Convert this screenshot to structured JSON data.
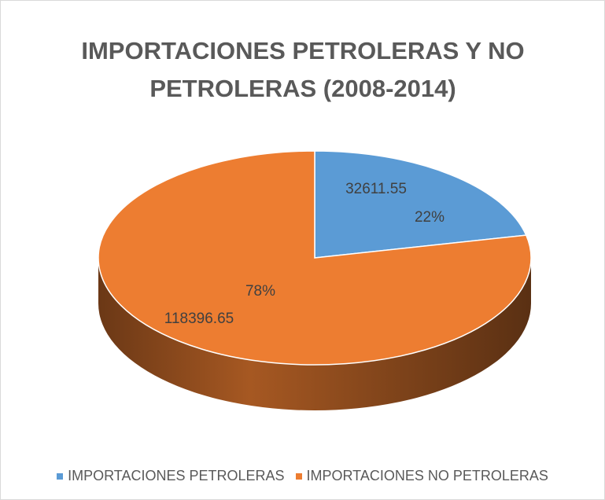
{
  "chart_data": {
    "type": "pie",
    "title": "IMPORTACIONES PETROLERAS Y NO PETROLERAS (2008-2014)",
    "categories": [
      "IMPORTACIONES PETROLERAS",
      "IMPORTACIONES NO PETROLERAS"
    ],
    "values": [
      32611.55,
      118396.65
    ],
    "percent_labels": [
      "22%",
      "78%"
    ],
    "colors": [
      "#5b9bd5",
      "#ed7d31"
    ],
    "legend": "bottom"
  }
}
